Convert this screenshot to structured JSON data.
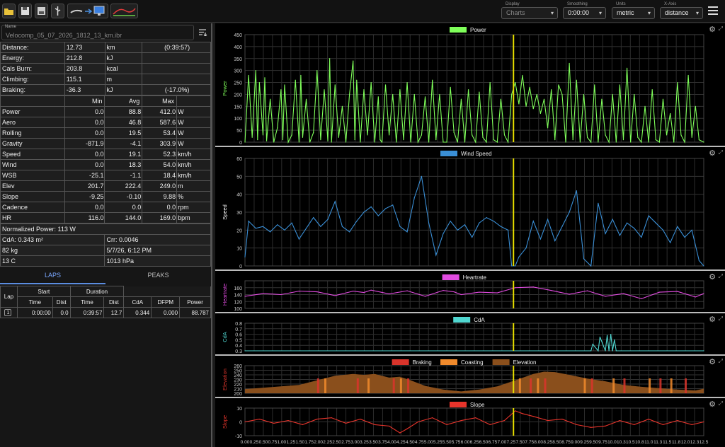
{
  "toolbar": {
    "buttons": [
      "open-icon",
      "save-icon",
      "save-as-icon",
      "usb-icon"
    ],
    "display": {
      "label": "Display",
      "value": "Charts"
    },
    "smoothing": {
      "label": "Smoothing",
      "value": "0:00:00"
    },
    "units": {
      "label": "Units",
      "value": "metric"
    },
    "xaxis": {
      "label": "X-Axis",
      "value": "distance"
    }
  },
  "file": {
    "label": "Name",
    "value": "Velocomp_05_07_2026_1812_13_km.ibr"
  },
  "summary": [
    {
      "name": "Distance:",
      "value": "12.73",
      "unit": "km",
      "extra": "(0:39:57)"
    },
    {
      "name": "Energy:",
      "value": "212.8",
      "unit": "kJ",
      "extra": ""
    },
    {
      "name": "Cals Burn:",
      "value": "203.8",
      "unit": "kcal",
      "extra": ""
    },
    {
      "name": "Climbing:",
      "value": "115.1",
      "unit": "m",
      "extra": ""
    },
    {
      "name": "Braking:",
      "value": "-36.3",
      "unit": "kJ",
      "extra": "(-17.0%)"
    }
  ],
  "stats": {
    "headers": [
      "Min",
      "Avg",
      "Max"
    ],
    "rows": [
      {
        "name": "Power",
        "min": "0.0",
        "avg": "88.8",
        "max": "412.0",
        "unit": "W"
      },
      {
        "name": "Aero",
        "min": "0.0",
        "avg": "46.8",
        "max": "587.6",
        "unit": "W"
      },
      {
        "name": "Rolling",
        "min": "0.0",
        "avg": "19.5",
        "max": "53.4",
        "unit": "W"
      },
      {
        "name": "Gravity",
        "min": "-871.9",
        "avg": "-4.1",
        "max": "303.9",
        "unit": "W"
      },
      {
        "name": "Speed",
        "min": "0.0",
        "avg": "19.1",
        "max": "52.3",
        "unit": "km/h"
      },
      {
        "name": "Wind",
        "min": "0.0",
        "avg": "18.3",
        "max": "54.0",
        "unit": "km/h"
      },
      {
        "name": "WSB",
        "min": "-25.1",
        "avg": "-1.1",
        "max": "18.4",
        "unit": "km/h"
      },
      {
        "name": "Elev",
        "min": "201.7",
        "avg": "222.4",
        "max": "249.0",
        "unit": "m"
      },
      {
        "name": "Slope",
        "min": "-9.25",
        "avg": "-0.10",
        "max": "9.88",
        "unit": "%"
      },
      {
        "name": "Cadence",
        "min": "0.0",
        "avg": "0.0",
        "max": "0.0",
        "unit": "rpm"
      },
      {
        "name": "HR",
        "min": "116.0",
        "avg": "144.0",
        "max": "169.0",
        "unit": "bpm"
      }
    ]
  },
  "extra": {
    "normalized_power": "Normalized Power: 113 W",
    "cda": "CdA: 0.343 m²",
    "crr": "Crr: 0.0046",
    "weight": "82 kg",
    "datetime": "5/7/26, 6:12 PM",
    "temp": "13 C",
    "pressure": "1013 hPa"
  },
  "tabs": [
    "LAPS",
    "PEAKS"
  ],
  "laps": {
    "group_headers": {
      "lap": "Lap",
      "start": "Start",
      "duration": "Duration"
    },
    "headers": [
      "Time",
      "Dist",
      "Time",
      "Dist",
      "CdA",
      "DFPM",
      "Power"
    ],
    "rows": [
      {
        "lap": "1",
        "start_time": "0:00:00",
        "start_dist": "0.0",
        "dur_time": "0:39:57",
        "dur_dist": "12.7",
        "cda": "0.344",
        "dfpm": "0.000",
        "power": "88.787"
      }
    ]
  },
  "colors": {
    "power": "#7fff5a",
    "wind": "#3a8fd6",
    "heartrate": "#e14be0",
    "cda": "#4fd6d0",
    "braking": "#d9342b",
    "coasting": "#f08a2c",
    "elevation": "#8a4f1c",
    "slope": "#e8342b",
    "cursor": "#e8e000"
  },
  "cursor_x": 7.45,
  "chart_data": [
    {
      "type": "line",
      "title": "Power",
      "ylabel": "Power",
      "legend": [
        "Power"
      ],
      "xlim": [
        0,
        12.73
      ],
      "ylim": [
        0,
        450
      ],
      "yticks": [
        0,
        50,
        100,
        150,
        200,
        250,
        300,
        350,
        400,
        450
      ],
      "xticks": [
        "0.00",
        "0.25",
        "0.50",
        "0.75",
        "1.00",
        "1.25",
        "1.50",
        "1.75",
        "2.00",
        "2.25",
        "2.50",
        "2.75",
        "3.00",
        "3.25",
        "3.50",
        "3.75",
        "4.00",
        "4.25",
        "4.50",
        "4.75",
        "5.00",
        "5.25",
        "5.50",
        "5.75",
        "6.00",
        "6.25",
        "6.50",
        "6.75",
        "7.00",
        "7.25",
        "7.50",
        "7.75",
        "8.00",
        "8.25",
        "8.50",
        "8.75",
        "9.00",
        "9.25",
        "9.50",
        "9.75",
        "10.0",
        "10.3",
        "10.5",
        "10.8",
        "11.0",
        "11.3",
        "11.5",
        "11.8",
        "12.0",
        "12.3",
        "12.5"
      ],
      "x": [
        0.0,
        0.1,
        0.2,
        0.3,
        0.35,
        0.4,
        0.5,
        0.55,
        0.6,
        0.7,
        0.8,
        0.9,
        1.0,
        1.05,
        1.1,
        1.2,
        1.3,
        1.4,
        1.5,
        1.55,
        1.6,
        1.7,
        1.8,
        1.9,
        2.0,
        2.1,
        2.2,
        2.3,
        2.35,
        2.4,
        2.5,
        2.6,
        2.7,
        2.8,
        2.9,
        3.0,
        3.05,
        3.1,
        3.2,
        3.3,
        3.4,
        3.5,
        3.6,
        3.7,
        3.75,
        3.8,
        3.9,
        4.0,
        4.1,
        4.2,
        4.3,
        4.4,
        4.5,
        4.6,
        4.7,
        4.8,
        4.9,
        5.0,
        5.1,
        5.2,
        5.3,
        5.4,
        5.5,
        5.6,
        5.7,
        5.8,
        5.9,
        6.0,
        6.1,
        6.2,
        6.3,
        6.4,
        6.5,
        6.6,
        6.7,
        6.8,
        6.9,
        7.0,
        7.1,
        7.2,
        7.3,
        7.4,
        7.5,
        7.6,
        7.7,
        7.8,
        7.9,
        8.0,
        8.1,
        8.2,
        8.3,
        8.4,
        8.5,
        8.6,
        8.7,
        8.8,
        8.9,
        9.0,
        9.1,
        9.2,
        9.3,
        9.4,
        9.5,
        9.6,
        9.7,
        9.8,
        9.9,
        10.0,
        10.1,
        10.2,
        10.3,
        10.4,
        10.5,
        10.6,
        10.7,
        10.8,
        10.9,
        11.0,
        11.1,
        11.2,
        11.3,
        11.4,
        11.5,
        11.6,
        11.7,
        11.8,
        11.9,
        12.0,
        12.1,
        12.2,
        12.3,
        12.4,
        12.5,
        12.6,
        12.73
      ],
      "y": [
        0,
        280,
        20,
        300,
        10,
        250,
        30,
        270,
        5,
        180,
        0,
        60,
        220,
        10,
        240,
        0,
        30,
        260,
        0,
        280,
        20,
        180,
        0,
        40,
        300,
        10,
        220,
        5,
        350,
        0,
        240,
        20,
        150,
        0,
        200,
        340,
        10,
        260,
        0,
        220,
        30,
        250,
        0,
        190,
        10,
        0,
        240,
        30,
        200,
        0,
        220,
        10,
        250,
        0,
        200,
        0,
        30,
        190,
        0,
        260,
        10,
        200,
        0,
        0,
        230,
        40,
        0,
        180,
        0,
        220,
        30,
        0,
        210,
        20,
        0,
        250,
        10,
        0,
        180,
        30,
        0,
        200,
        250,
        160,
        280,
        150,
        230,
        140,
        200,
        120,
        180,
        60,
        220,
        10,
        240,
        200,
        0,
        330,
        10,
        260,
        0,
        200,
        20,
        0,
        240,
        0,
        180,
        30,
        0,
        200,
        0,
        240,
        10,
        310,
        0,
        200,
        20,
        0,
        150,
        0,
        220,
        10,
        0,
        180,
        30,
        120,
        0,
        250,
        30,
        0,
        280,
        20,
        150,
        10,
        0
      ]
    },
    {
      "type": "line",
      "title": "Wind Speed",
      "ylabel": "Speed",
      "legend": [
        "Wind Speed"
      ],
      "xlim": [
        0,
        12.73
      ],
      "ylim": [
        0,
        60
      ],
      "yticks": [
        0,
        10,
        20,
        30,
        40,
        50,
        60
      ],
      "x": [
        0.0,
        0.1,
        0.3,
        0.5,
        0.7,
        0.9,
        1.1,
        1.3,
        1.5,
        1.7,
        1.9,
        2.1,
        2.3,
        2.5,
        2.7,
        2.9,
        3.1,
        3.3,
        3.5,
        3.7,
        3.9,
        4.1,
        4.3,
        4.5,
        4.7,
        4.9,
        5.1,
        5.3,
        5.5,
        5.7,
        5.9,
        6.1,
        6.3,
        6.5,
        6.7,
        6.9,
        7.1,
        7.3,
        7.4,
        7.5,
        7.6,
        7.8,
        8.0,
        8.2,
        8.4,
        8.6,
        8.8,
        9.0,
        9.2,
        9.4,
        9.6,
        9.8,
        10.0,
        10.2,
        10.4,
        10.6,
        10.8,
        11.0,
        11.2,
        11.4,
        11.6,
        11.8,
        12.0,
        12.2,
        12.4,
        12.6,
        12.73
      ],
      "y": [
        5,
        25,
        21,
        22,
        19,
        23,
        20,
        24,
        15,
        21,
        27,
        22,
        26,
        36,
        22,
        19,
        25,
        30,
        33,
        28,
        32,
        34,
        22,
        19,
        38,
        50,
        24,
        6,
        18,
        25,
        20,
        23,
        16,
        24,
        27,
        25,
        22,
        20,
        0,
        0,
        5,
        10,
        25,
        15,
        26,
        14,
        22,
        30,
        42,
        4,
        0,
        35,
        18,
        26,
        17,
        24,
        21,
        16,
        28,
        24,
        20,
        13,
        22,
        16,
        20,
        3,
        0
      ]
    },
    {
      "type": "line",
      "title": "Heartrate",
      "ylabel": "Heartrate",
      "legend": [
        "Heartrate"
      ],
      "xlim": [
        0,
        12.73
      ],
      "ylim": [
        100,
        180
      ],
      "yticks": [
        100,
        120,
        140,
        160
      ],
      "x": [
        0,
        0.5,
        1.0,
        1.5,
        2.0,
        2.5,
        3.0,
        3.3,
        3.5,
        4.0,
        4.5,
        5.0,
        5.5,
        5.8,
        6.0,
        6.5,
        7.0,
        7.5,
        8.0,
        8.5,
        9.0,
        9.5,
        10.0,
        10.5,
        11.0,
        11.5,
        12.0,
        12.5,
        12.73
      ],
      "y": [
        135,
        143,
        140,
        150,
        148,
        137,
        150,
        146,
        153,
        142,
        151,
        135,
        152,
        148,
        140,
        147,
        145,
        160,
        162,
        152,
        141,
        151,
        135,
        143,
        128,
        147,
        149,
        133,
        143
      ]
    },
    {
      "type": "line",
      "title": "CdA",
      "ylabel": "CdA",
      "legend": [
        "CdA"
      ],
      "xlim": [
        0,
        12.73
      ],
      "ylim": [
        0.3,
        0.8
      ],
      "yticks": [
        0.3,
        0.4,
        0.5,
        0.6,
        0.7,
        0.8
      ],
      "x": [
        0,
        9.6,
        9.65,
        9.8,
        9.85,
        10.0,
        10.05,
        10.1,
        10.15,
        10.2,
        10.25,
        10.3,
        12.73
      ],
      "y": [
        0.3,
        0.3,
        0.42,
        0.3,
        0.55,
        0.3,
        0.58,
        0.3,
        0.6,
        0.3,
        0.5,
        0.3,
        0.3
      ]
    },
    {
      "type": "area",
      "title": "",
      "ylabel": "Elevation",
      "legend": [
        "Braking",
        "Coasting",
        "Elevation"
      ],
      "xlim": [
        0,
        12.73
      ],
      "ylim": [
        200,
        260
      ],
      "yticks": [
        200,
        210,
        220,
        230,
        240,
        250,
        260
      ],
      "x": [
        0,
        0.5,
        1.0,
        1.5,
        2.0,
        2.5,
        3.0,
        3.3,
        3.6,
        4.0,
        4.3,
        4.6,
        5.0,
        5.5,
        6.0,
        6.5,
        7.0,
        7.5,
        8.0,
        8.3,
        8.6,
        9.0,
        9.5,
        10.0,
        10.5,
        11.0,
        11.5,
        12.0,
        12.5,
        12.73
      ],
      "y": [
        209,
        212,
        215,
        218,
        228,
        238,
        242,
        240,
        242,
        234,
        236,
        228,
        216,
        208,
        204,
        208,
        215,
        228,
        242,
        247,
        246,
        240,
        232,
        226,
        218,
        214,
        211,
        208,
        206,
        210
      ]
    },
    {
      "type": "line",
      "title": "Slope",
      "ylabel": "Slope",
      "legend": [
        "Slope"
      ],
      "xlim": [
        0,
        12.73
      ],
      "ylim": [
        -10,
        10
      ],
      "yticks": [
        -10,
        0,
        10
      ],
      "xlabel": "",
      "x": [
        0,
        0.4,
        0.8,
        1.2,
        1.6,
        2.0,
        2.4,
        2.8,
        3.2,
        3.6,
        4.0,
        4.3,
        4.5,
        4.8,
        5.2,
        5.6,
        6.0,
        6.4,
        6.8,
        7.2,
        7.5,
        7.7,
        8.0,
        8.4,
        8.8,
        9.2,
        9.6,
        10.0,
        10.4,
        10.8,
        11.2,
        11.6,
        12.0,
        12.4,
        12.73
      ],
      "y": [
        0,
        2,
        -1,
        1,
        -2,
        2,
        3,
        -1,
        2,
        -2,
        -3,
        -8,
        -5,
        0,
        3,
        -2,
        1,
        3,
        -2,
        1,
        8,
        6,
        4,
        1,
        2,
        -2,
        -4,
        -3,
        1,
        -2,
        2,
        -2,
        1,
        -2,
        0
      ]
    }
  ]
}
